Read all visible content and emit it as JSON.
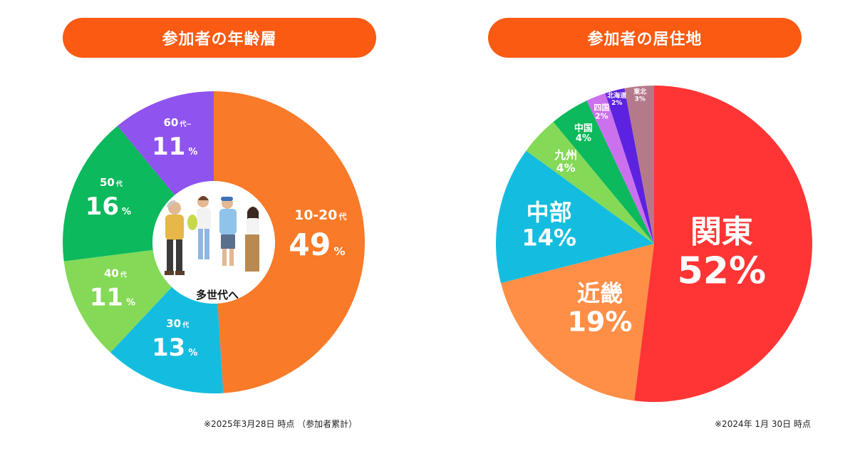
{
  "chart_data": [
    {
      "type": "pie",
      "title": "参加者の年齢層",
      "center_label": "多世代へ",
      "note": "※2025年3月28日 時点 （参加者累計）",
      "categories": [
        "10-20代",
        "30代",
        "40代",
        "50代",
        "60代~"
      ],
      "values": [
        49,
        13,
        11,
        16,
        11
      ],
      "labels": [
        {
          "head": "10-20",
          "sub": "代",
          "value": "49",
          "unit": "%"
        },
        {
          "head": "30",
          "sub": "代",
          "value": "13",
          "unit": "%"
        },
        {
          "head": "40",
          "sub": "代",
          "value": "11",
          "unit": "%"
        },
        {
          "head": "50",
          "sub": "代",
          "value": "16",
          "unit": "%"
        },
        {
          "head": "60",
          "sub": "代~",
          "value": "11",
          "unit": "%"
        }
      ],
      "colors": [
        "#f97a28",
        "#14bddf",
        "#84d957",
        "#0cb95c",
        "#8f53ef"
      ]
    },
    {
      "type": "pie",
      "title": "参加者の居住地",
      "note": "※2024年 1月 30日 時点",
      "categories": [
        "関東",
        "近畿",
        "中部",
        "九州",
        "中国",
        "四国",
        "北海道",
        "東北"
      ],
      "values": [
        52,
        19,
        14,
        4,
        4,
        2,
        2,
        3
      ],
      "labels": [
        {
          "name": "関東",
          "value": "52%"
        },
        {
          "name": "近畿",
          "value": "19%"
        },
        {
          "name": "中部",
          "value": "14%"
        },
        {
          "name": "九州",
          "value": "4%"
        },
        {
          "name": "中国",
          "value": "4%"
        },
        {
          "name": "四国",
          "value": "2%"
        },
        {
          "name": "北海道",
          "value": "2%"
        },
        {
          "name": "東北",
          "value": "3%"
        }
      ],
      "colors": [
        "#ff3535",
        "#ff8f47",
        "#14bddf",
        "#84d957",
        "#0cb95c",
        "#cb71ee",
        "#5d22e0",
        "#b57a8a"
      ]
    }
  ]
}
